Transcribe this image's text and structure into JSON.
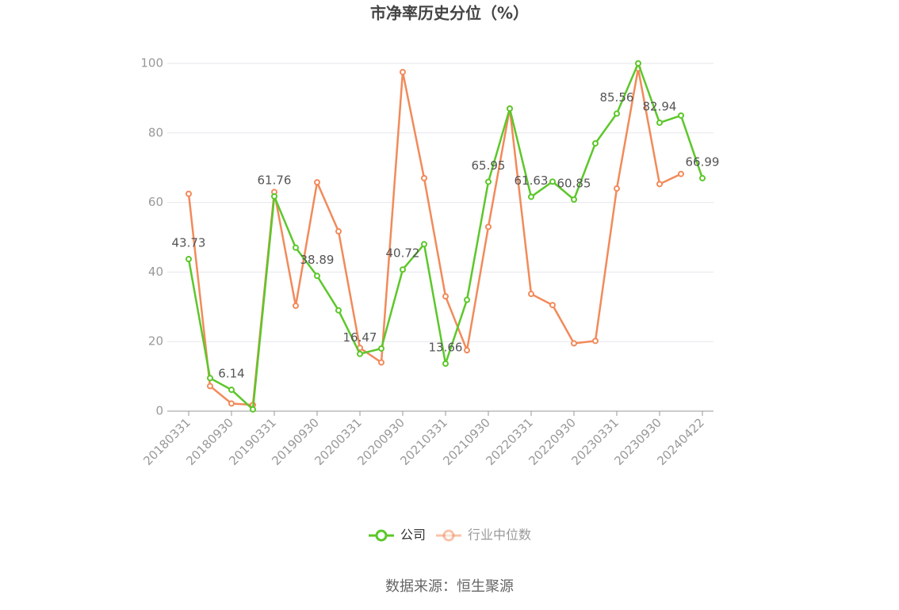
{
  "chart_data": {
    "type": "line",
    "title": "市净率历史分位（%）",
    "source": "数据来源：恒生聚源",
    "categories": [
      "20180331",
      null,
      "20180930",
      null,
      "20190331",
      null,
      "20190930",
      null,
      "20200331",
      null,
      "20200930",
      null,
      "20210331",
      null,
      "20210930",
      null,
      "20220331",
      null,
      "20220930",
      null,
      "20230331",
      null,
      "20230930",
      null,
      "20240422"
    ],
    "series": [
      {
        "name": "公司",
        "color": "#5cc72a",
        "values": [
          43.73,
          9.5,
          6.14,
          0.5,
          61.76,
          47,
          38.89,
          29,
          16.47,
          18,
          40.72,
          48,
          13.66,
          32,
          65.95,
          87,
          61.63,
          66,
          60.85,
          77,
          85.56,
          100,
          82.94,
          85,
          66.99
        ],
        "value_labels": [
          "43.73",
          null,
          "6.14",
          null,
          "61.76",
          null,
          "38.89",
          null,
          "16.47",
          null,
          "40.72",
          null,
          "13.66",
          null,
          "65.95",
          null,
          "61.63",
          null,
          "60.85",
          null,
          "85.56",
          null,
          "82.94",
          null,
          "66.99"
        ]
      },
      {
        "name": "行业中位数",
        "color": "#f28a5a",
        "values": [
          62.5,
          7.2,
          2.2,
          1.8,
          63,
          30.3,
          65.8,
          51.7,
          18.2,
          14,
          97.5,
          67,
          33,
          17.5,
          53,
          87,
          33.7,
          30.5,
          19.5,
          20.2,
          64,
          98.5,
          65.3,
          68.2,
          null
        ]
      }
    ],
    "ylim": [
      0,
      100
    ],
    "yticks": [
      0,
      20,
      40,
      60,
      80,
      100
    ],
    "grid": true,
    "legend": "bottom"
  }
}
